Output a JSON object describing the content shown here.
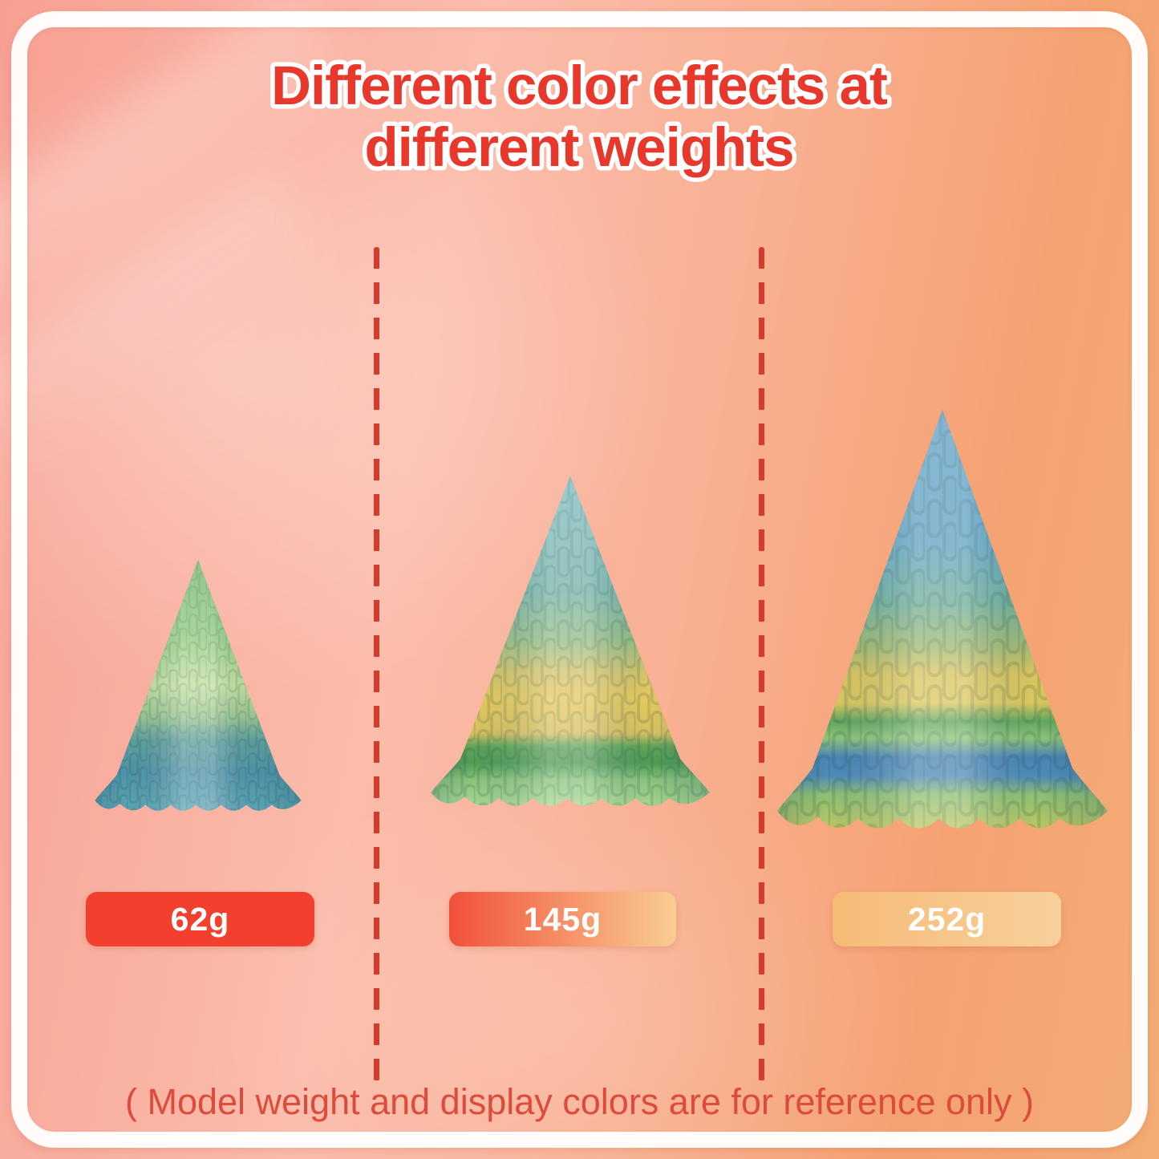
{
  "title": {
    "line1": "Different color effects at",
    "line2": "different weights",
    "text_color": "#e7382b",
    "outline_color": "#ffffff"
  },
  "footnote": {
    "text": "( Model weight and display colors are for reference only )",
    "color": "#dd4b3c"
  },
  "divider": {
    "style": "dashed",
    "color": "#d43b2b"
  },
  "frame": {
    "color": "#ffffff"
  },
  "background": {
    "left_color": "#f7a092",
    "center_color": "#fbbcab",
    "right_color": "#f3ac74"
  },
  "items": [
    {
      "weight_label": "62g",
      "badge": {
        "colors": [
          "#f23f2e",
          "#f23f2e"
        ],
        "text_color": "#ffffff"
      },
      "tree": {
        "description": "small 3D printed christmas tree, green top fading to teal blue base",
        "gradient": [
          [
            "0",
            "#6fb267"
          ],
          [
            "0.3",
            "#8cc87b"
          ],
          [
            "0.5",
            "#c2df9c"
          ],
          [
            "0.62",
            "#9cc690"
          ],
          [
            "0.72",
            "#5d9d9c"
          ],
          [
            "0.85",
            "#4f92a8"
          ],
          [
            "1",
            "#5ba4b4"
          ]
        ]
      }
    },
    {
      "weight_label": "145g",
      "badge": {
        "colors": [
          "#f1503a",
          "#f9cd92"
        ],
        "text_color": "#ffffff"
      },
      "tree": {
        "description": "medium 3D printed christmas tree, teal top, yellow middle, green band and light green base",
        "gradient": [
          [
            "0",
            "#7cbac0"
          ],
          [
            "0.35",
            "#74b2a8"
          ],
          [
            "0.5",
            "#97bd85"
          ],
          [
            "0.6",
            "#d6c468"
          ],
          [
            "0.68",
            "#e5c95c"
          ],
          [
            "0.78",
            "#d8c060"
          ],
          [
            "0.82",
            "#5fa459"
          ],
          [
            "0.87",
            "#4f9b54"
          ],
          [
            "0.92",
            "#8ac47c"
          ],
          [
            "1",
            "#a8d690"
          ]
        ]
      }
    },
    {
      "weight_label": "252g",
      "badge": {
        "colors": [
          "#f5bb77",
          "#f8d09b"
        ],
        "text_color": "#ffffff"
      },
      "tree": {
        "description": "large 3D printed christmas tree, blue top, yellow band, green and blue stripes near base",
        "gradient": [
          [
            "0",
            "#5d9ec6"
          ],
          [
            "0.32",
            "#60a2c2"
          ],
          [
            "0.46",
            "#6fae9a"
          ],
          [
            "0.56",
            "#9db873"
          ],
          [
            "0.63",
            "#d9c45e"
          ],
          [
            "0.7",
            "#ddc85e"
          ],
          [
            "0.745",
            "#61a75f"
          ],
          [
            "0.785",
            "#8fc478"
          ],
          [
            "0.83",
            "#4b85b5"
          ],
          [
            "0.875",
            "#4f8ab8"
          ],
          [
            "0.92",
            "#8fbf72"
          ],
          [
            "1",
            "#bcc763"
          ]
        ]
      }
    }
  ]
}
